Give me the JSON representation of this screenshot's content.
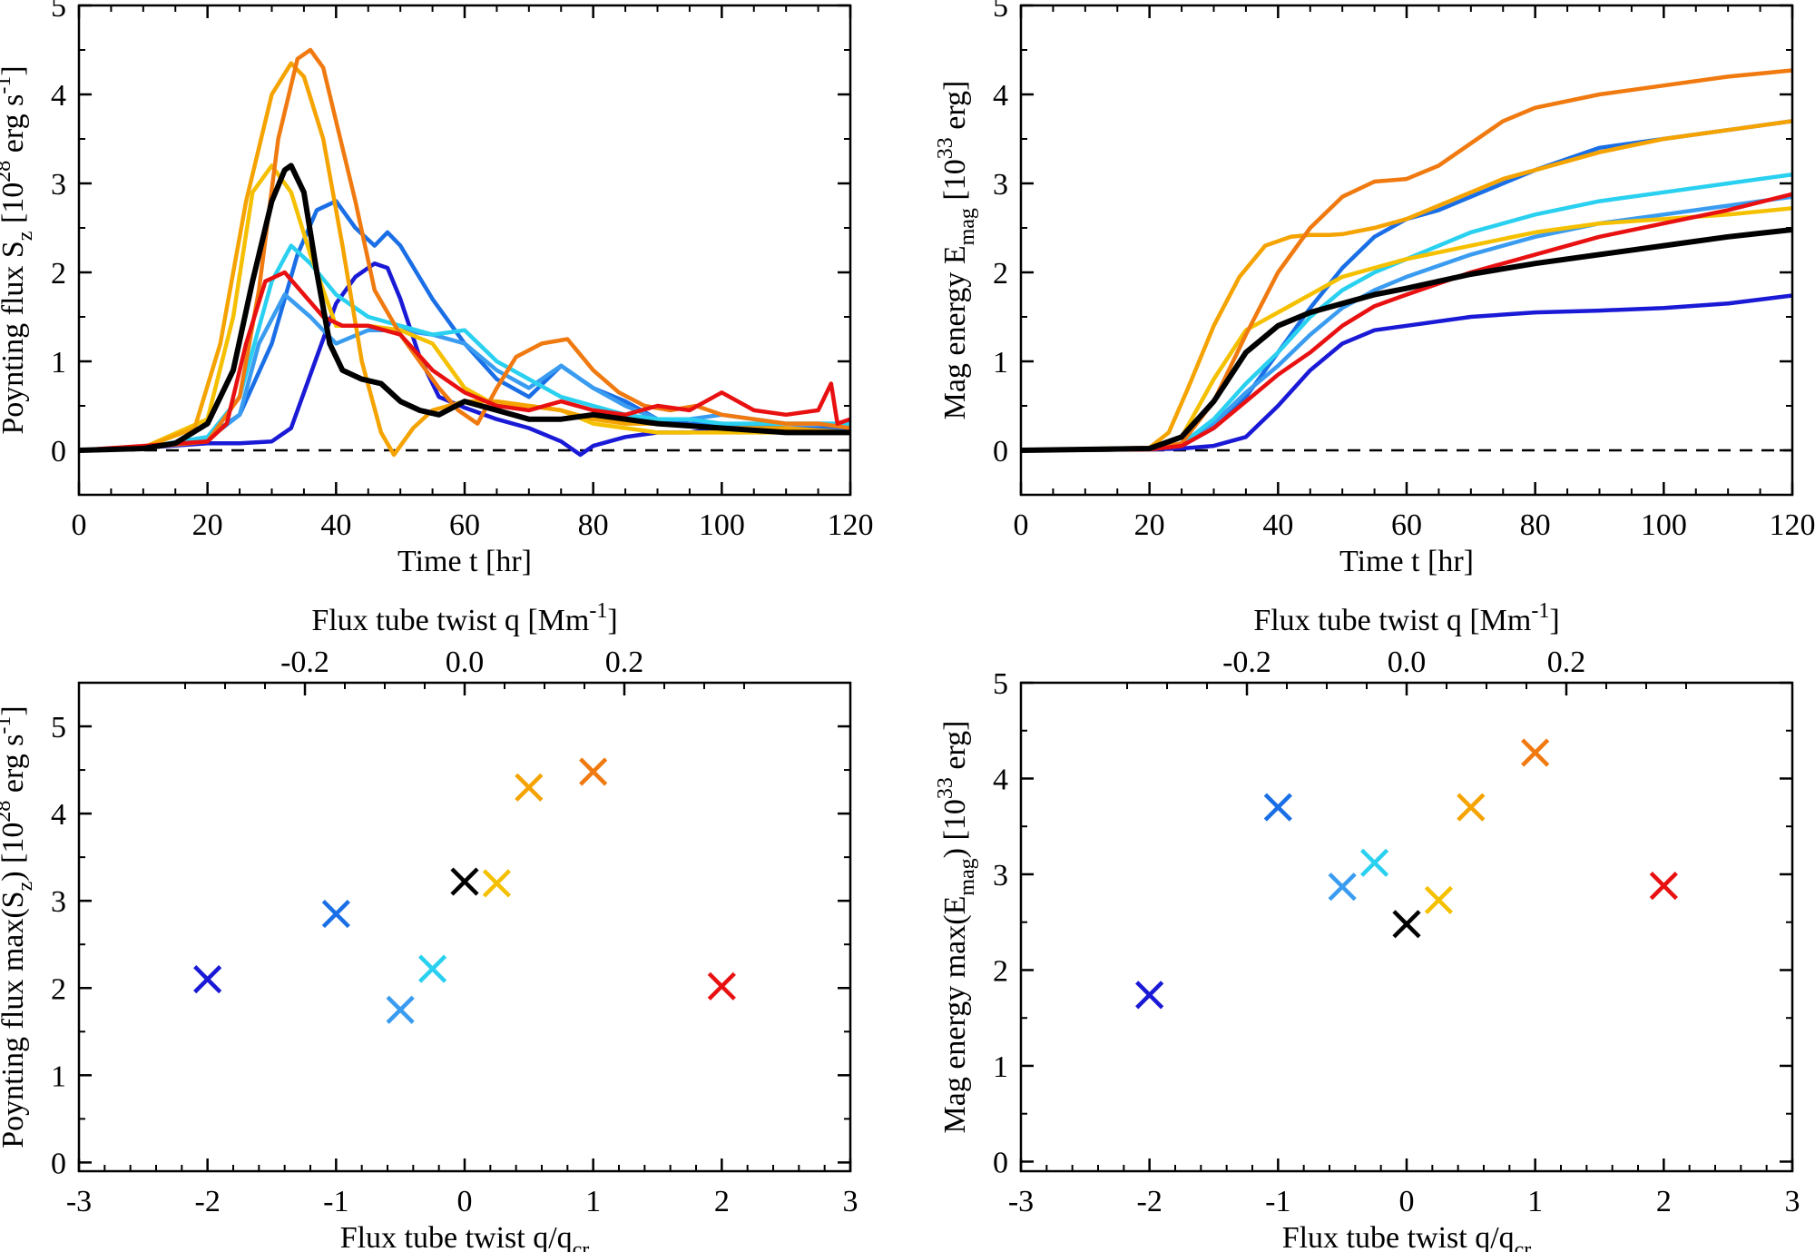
{
  "figure": {
    "panels": [
      {
        "id": "a",
        "xlabel": "Time t [hr]",
        "ylabel": "Poynting flux S_z [10^28 erg s^-1]"
      },
      {
        "id": "b",
        "xlabel": "Time t [hr]",
        "ylabel": "Mag energy E_mag [10^33 erg]"
      },
      {
        "id": "c",
        "xlabel": "Flux tube twist q/q_cr",
        "top_xlabel": "Flux tube twist q [Mm^-1]",
        "ylabel": "Poynting flux max(S_z) [10^28 erg s^-1]"
      },
      {
        "id": "d",
        "xlabel": "Flux tube twist q/q_cr",
        "top_xlabel": "Flux tube twist q [Mm^-1]",
        "ylabel": "Mag energy max(E_mag) [10^33 erg]"
      }
    ]
  },
  "chart_data": [
    {
      "type": "line",
      "panel": "a",
      "xlabel": "Time t [hr]",
      "ylabel": "Poynting flux S_z [10^28 erg s^-1]",
      "xlim": [
        0,
        120
      ],
      "ylim": [
        -0.5,
        5
      ],
      "xticks": [
        0,
        20,
        40,
        60,
        80,
        100,
        120
      ],
      "yticks": [
        0,
        1,
        2,
        3,
        4,
        5
      ],
      "reference_line": {
        "y": 0,
        "style": "dashed"
      },
      "series": [
        {
          "color": "#1a1ad6",
          "x": [
            0,
            10,
            20,
            25,
            30,
            33,
            36,
            40,
            43,
            46,
            48,
            50,
            53,
            56,
            60,
            65,
            70,
            75,
            78,
            80,
            85,
            90,
            95,
            100,
            110,
            120
          ],
          "y": [
            0,
            0.03,
            0.08,
            0.08,
            0.1,
            0.25,
            0.85,
            1.65,
            1.95,
            2.1,
            2.05,
            1.7,
            1.05,
            0.6,
            0.48,
            0.35,
            0.25,
            0.1,
            -0.05,
            0.05,
            0.15,
            0.2,
            0.2,
            0.25,
            0.2,
            0.2
          ]
        },
        {
          "color": "#1a6fe6",
          "x": [
            0,
            10,
            20,
            25,
            30,
            34,
            37,
            40,
            43,
            46,
            48,
            50,
            55,
            60,
            65,
            70,
            75,
            80,
            85,
            90,
            95,
            100,
            110,
            120
          ],
          "y": [
            0,
            0.03,
            0.15,
            0.4,
            1.2,
            2.2,
            2.7,
            2.8,
            2.5,
            2.3,
            2.45,
            2.3,
            1.7,
            1.2,
            0.8,
            0.6,
            0.95,
            0.7,
            0.55,
            0.35,
            0.3,
            0.3,
            0.25,
            0.25
          ]
        },
        {
          "color": "#3a9cf0",
          "x": [
            0,
            10,
            20,
            25,
            28,
            32,
            36,
            40,
            45,
            50,
            55,
            60,
            65,
            70,
            75,
            80,
            85,
            90,
            95,
            100,
            110,
            120
          ],
          "y": [
            0,
            0.03,
            0.12,
            0.4,
            1.2,
            1.75,
            1.5,
            1.2,
            1.35,
            1.35,
            1.3,
            1.2,
            0.9,
            0.7,
            0.95,
            0.7,
            0.5,
            0.35,
            0.35,
            0.4,
            0.3,
            0.3
          ]
        },
        {
          "color": "#2ad0f0",
          "x": [
            0,
            10,
            20,
            25,
            30,
            33,
            36,
            40,
            45,
            50,
            55,
            60,
            65,
            70,
            75,
            80,
            85,
            90,
            95,
            100,
            110,
            120
          ],
          "y": [
            0,
            0.03,
            0.15,
            0.6,
            1.9,
            2.3,
            2.1,
            1.75,
            1.5,
            1.4,
            1.3,
            1.35,
            1.0,
            0.8,
            0.6,
            0.5,
            0.4,
            0.35,
            0.35,
            0.3,
            0.3,
            0.3
          ]
        },
        {
          "color": "#f5c000",
          "x": [
            0,
            10,
            20,
            24,
            27,
            30,
            33,
            36,
            40,
            45,
            50,
            55,
            60,
            65,
            70,
            75,
            80,
            85,
            90,
            100,
            110,
            120
          ],
          "y": [
            0,
            0.03,
            0.35,
            1.5,
            2.9,
            3.2,
            2.9,
            2.2,
            1.4,
            1.4,
            1.35,
            1.2,
            0.7,
            0.5,
            0.5,
            0.45,
            0.3,
            0.25,
            0.2,
            0.2,
            0.2,
            0.2
          ]
        },
        {
          "color": "#f5a300",
          "x": [
            0,
            10,
            18,
            22,
            26,
            30,
            33,
            35,
            38,
            41,
            44,
            47,
            49,
            52,
            55,
            60,
            65,
            70,
            75,
            80,
            85,
            90,
            100,
            110,
            120
          ],
          "y": [
            0,
            0.03,
            0.25,
            1.2,
            2.8,
            4.0,
            4.35,
            4.2,
            3.5,
            2.3,
            1.0,
            0.2,
            -0.05,
            0.25,
            0.45,
            0.55,
            0.55,
            0.5,
            0.45,
            0.35,
            0.3,
            0.3,
            0.25,
            0.25,
            0.2
          ]
        },
        {
          "color": "#f07a10",
          "x": [
            0,
            10,
            20,
            25,
            28,
            31,
            34,
            36,
            38,
            40,
            43,
            46,
            50,
            53,
            56,
            59,
            62,
            65,
            68,
            72,
            76,
            80,
            84,
            88,
            92,
            96,
            100,
            105,
            110,
            115,
            120
          ],
          "y": [
            0,
            0.03,
            0.1,
            0.6,
            1.8,
            3.5,
            4.4,
            4.5,
            4.3,
            3.7,
            2.8,
            1.8,
            1.3,
            1.0,
            0.7,
            0.45,
            0.3,
            0.7,
            1.05,
            1.2,
            1.25,
            0.9,
            0.65,
            0.5,
            0.45,
            0.5,
            0.4,
            0.35,
            0.3,
            0.3,
            0.25
          ]
        },
        {
          "color": "#e81010",
          "x": [
            0,
            10,
            20,
            23,
            26,
            29,
            32,
            35,
            38,
            41,
            45,
            50,
            55,
            60,
            65,
            70,
            75,
            80,
            85,
            90,
            95,
            100,
            105,
            110,
            115,
            117,
            118,
            120
          ],
          "y": [
            0,
            0.05,
            0.1,
            0.3,
            1.2,
            1.9,
            2.0,
            1.75,
            1.5,
            1.4,
            1.4,
            1.3,
            0.9,
            0.65,
            0.5,
            0.45,
            0.55,
            0.45,
            0.4,
            0.5,
            0.45,
            0.65,
            0.45,
            0.4,
            0.45,
            0.75,
            0.3,
            0.35
          ]
        },
        {
          "color": "#000000",
          "x": [
            0,
            10,
            15,
            20,
            24,
            27,
            30,
            32,
            33,
            35,
            37,
            39,
            41,
            44,
            47,
            50,
            53,
            56,
            60,
            65,
            70,
            75,
            80,
            85,
            90,
            100,
            110,
            120
          ],
          "y": [
            0,
            0.02,
            0.08,
            0.3,
            0.9,
            1.9,
            2.8,
            3.15,
            3.2,
            2.9,
            2.0,
            1.2,
            0.9,
            0.8,
            0.75,
            0.55,
            0.45,
            0.4,
            0.55,
            0.45,
            0.35,
            0.35,
            0.4,
            0.35,
            0.3,
            0.25,
            0.2,
            0.2
          ],
          "thick": true
        }
      ]
    },
    {
      "type": "line",
      "panel": "b",
      "xlabel": "Time t [hr]",
      "ylabel": "Mag energy E_mag [10^33 erg]",
      "xlim": [
        0,
        120
      ],
      "ylim": [
        -0.5,
        5
      ],
      "xticks": [
        0,
        20,
        40,
        60,
        80,
        100,
        120
      ],
      "yticks": [
        0,
        1,
        2,
        3,
        4,
        5
      ],
      "reference_line": {
        "y": 0,
        "style": "dashed"
      },
      "series": [
        {
          "color": "#1a1ad6",
          "x": [
            0,
            20,
            25,
            30,
            35,
            40,
            45,
            50,
            55,
            60,
            70,
            80,
            90,
            100,
            110,
            120
          ],
          "y": [
            0,
            0.01,
            0.02,
            0.05,
            0.15,
            0.5,
            0.9,
            1.2,
            1.35,
            1.4,
            1.5,
            1.55,
            1.57,
            1.6,
            1.65,
            1.74
          ]
        },
        {
          "color": "#1a6fe6",
          "x": [
            0,
            20,
            25,
            30,
            35,
            40,
            45,
            50,
            55,
            60,
            65,
            70,
            80,
            90,
            100,
            110,
            120
          ],
          "y": [
            0,
            0.01,
            0.05,
            0.25,
            0.6,
            1.1,
            1.6,
            2.05,
            2.4,
            2.6,
            2.7,
            2.85,
            3.15,
            3.4,
            3.5,
            3.6,
            3.7
          ]
        },
        {
          "color": "#3a9cf0",
          "x": [
            0,
            20,
            25,
            30,
            35,
            40,
            45,
            50,
            55,
            60,
            70,
            80,
            90,
            100,
            110,
            120
          ],
          "y": [
            0,
            0.01,
            0.06,
            0.3,
            0.65,
            0.95,
            1.3,
            1.6,
            1.8,
            1.95,
            2.2,
            2.4,
            2.55,
            2.65,
            2.75,
            2.85
          ]
        },
        {
          "color": "#2ad0f0",
          "x": [
            0,
            20,
            25,
            30,
            35,
            40,
            45,
            50,
            55,
            60,
            70,
            80,
            90,
            100,
            110,
            120
          ],
          "y": [
            0,
            0.01,
            0.07,
            0.35,
            0.75,
            1.1,
            1.5,
            1.8,
            2.0,
            2.15,
            2.45,
            2.65,
            2.8,
            2.9,
            3.0,
            3.1
          ]
        },
        {
          "color": "#f5c000",
          "x": [
            0,
            20,
            25,
            30,
            35,
            40,
            45,
            50,
            55,
            60,
            70,
            80,
            90,
            100,
            110,
            120
          ],
          "y": [
            0,
            0.02,
            0.15,
            0.8,
            1.35,
            1.55,
            1.75,
            1.95,
            2.05,
            2.15,
            2.3,
            2.45,
            2.55,
            2.6,
            2.65,
            2.72
          ]
        },
        {
          "color": "#f5a300",
          "x": [
            0,
            20,
            23,
            26,
            30,
            34,
            38,
            42,
            45,
            48,
            50,
            55,
            60,
            65,
            70,
            75,
            80,
            90,
            100,
            110,
            120
          ],
          "y": [
            0,
            0.03,
            0.2,
            0.7,
            1.4,
            1.95,
            2.3,
            2.4,
            2.42,
            2.42,
            2.43,
            2.5,
            2.6,
            2.75,
            2.9,
            3.05,
            3.15,
            3.35,
            3.5,
            3.6,
            3.7
          ]
        },
        {
          "color": "#f07a10",
          "x": [
            0,
            20,
            25,
            30,
            35,
            40,
            45,
            50,
            55,
            60,
            65,
            70,
            75,
            80,
            90,
            100,
            110,
            120
          ],
          "y": [
            0,
            0.01,
            0.08,
            0.55,
            1.3,
            2.0,
            2.5,
            2.85,
            3.02,
            3.05,
            3.2,
            3.45,
            3.7,
            3.85,
            4.0,
            4.1,
            4.2,
            4.27
          ]
        },
        {
          "color": "#e81010",
          "x": [
            0,
            20,
            25,
            30,
            35,
            40,
            45,
            50,
            55,
            60,
            70,
            80,
            90,
            100,
            110,
            120
          ],
          "y": [
            0,
            0.01,
            0.05,
            0.25,
            0.55,
            0.85,
            1.1,
            1.4,
            1.62,
            1.75,
            2.0,
            2.2,
            2.4,
            2.55,
            2.7,
            2.88
          ]
        },
        {
          "color": "#000000",
          "x": [
            0,
            20,
            25,
            30,
            35,
            40,
            45,
            50,
            55,
            60,
            70,
            80,
            90,
            100,
            110,
            120
          ],
          "y": [
            0,
            0.02,
            0.15,
            0.55,
            1.1,
            1.4,
            1.55,
            1.65,
            1.75,
            1.82,
            1.98,
            2.1,
            2.2,
            2.3,
            2.4,
            2.48
          ],
          "thick": true
        }
      ]
    },
    {
      "type": "scatter",
      "panel": "c",
      "xlabel": "Flux tube twist q/q_cr",
      "top_xlabel": "Flux tube twist q [Mm^-1]",
      "ylabel": "Poynting flux max(S_z) [10^28 erg s^-1]",
      "xlim": [
        -3,
        3
      ],
      "ylim": [
        -0.1,
        5.5
      ],
      "xticks": [
        -3,
        -2,
        -1,
        0,
        1,
        2,
        3
      ],
      "top_xticks": [
        -0.2,
        0.0,
        0.2
      ],
      "top_xtick_labels": [
        "-0.2",
        "0.0",
        "0.2"
      ],
      "q_per_qcr": 0.161,
      "yticks": [
        0,
        1,
        2,
        3,
        4,
        5
      ],
      "points": [
        {
          "x": -2,
          "y": 2.1,
          "color": "#1a1ad6"
        },
        {
          "x": -1,
          "y": 2.85,
          "color": "#1a6fe6"
        },
        {
          "x": -0.5,
          "y": 1.75,
          "color": "#3a9cf0"
        },
        {
          "x": -0.25,
          "y": 2.22,
          "color": "#2ad0f0"
        },
        {
          "x": 0,
          "y": 3.22,
          "color": "#000000"
        },
        {
          "x": 0.25,
          "y": 3.2,
          "color": "#f5c000"
        },
        {
          "x": 0.5,
          "y": 4.3,
          "color": "#f5a300"
        },
        {
          "x": 1,
          "y": 4.48,
          "color": "#f07a10"
        },
        {
          "x": 2,
          "y": 2.02,
          "color": "#e81010"
        }
      ]
    },
    {
      "type": "scatter",
      "panel": "d",
      "xlabel": "Flux tube twist q/q_cr",
      "top_xlabel": "Flux tube twist q [Mm^-1]",
      "ylabel": "Mag energy max(E_mag) [10^33 erg]",
      "xlim": [
        -3,
        3
      ],
      "ylim": [
        -0.1,
        5
      ],
      "xticks": [
        -3,
        -2,
        -1,
        0,
        1,
        2,
        3
      ],
      "top_xticks": [
        -0.2,
        0.0,
        0.2
      ],
      "top_xtick_labels": [
        "-0.2",
        "0.0",
        "0.2"
      ],
      "q_per_qcr": 0.161,
      "yticks": [
        0,
        1,
        2,
        3,
        4,
        5
      ],
      "points": [
        {
          "x": -2,
          "y": 1.74,
          "color": "#1a1ad6"
        },
        {
          "x": -1,
          "y": 3.7,
          "color": "#1a6fe6"
        },
        {
          "x": -0.5,
          "y": 2.87,
          "color": "#3a9cf0"
        },
        {
          "x": -0.25,
          "y": 3.12,
          "color": "#2ad0f0"
        },
        {
          "x": 0,
          "y": 2.48,
          "color": "#000000"
        },
        {
          "x": 0.25,
          "y": 2.73,
          "color": "#f5c000"
        },
        {
          "x": 0.5,
          "y": 3.7,
          "color": "#f5a300"
        },
        {
          "x": 1,
          "y": 4.27,
          "color": "#f07a10"
        },
        {
          "x": 2,
          "y": 2.88,
          "color": "#e81010"
        }
      ]
    }
  ]
}
